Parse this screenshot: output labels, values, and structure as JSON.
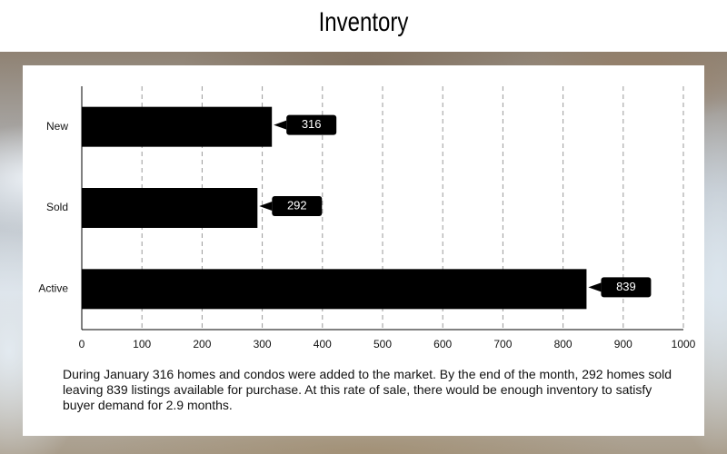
{
  "chart_data": {
    "type": "bar",
    "orientation": "horizontal",
    "title": "Inventory",
    "categories": [
      "New",
      "Sold",
      "Active"
    ],
    "values": [
      316,
      292,
      839
    ],
    "color": "#000000",
    "xlim": [
      0,
      1000
    ],
    "xticks": [
      0,
      100,
      200,
      300,
      400,
      500,
      600,
      700,
      800,
      900,
      1000
    ],
    "grid": true,
    "description": "During January 316 homes and condos were added to the market. By the end of the month, 292 homes sold leaving 839 listings available for purchase. At this rate of sale, there would be enough inventory to satisfy buyer demand for 2.9 months."
  }
}
